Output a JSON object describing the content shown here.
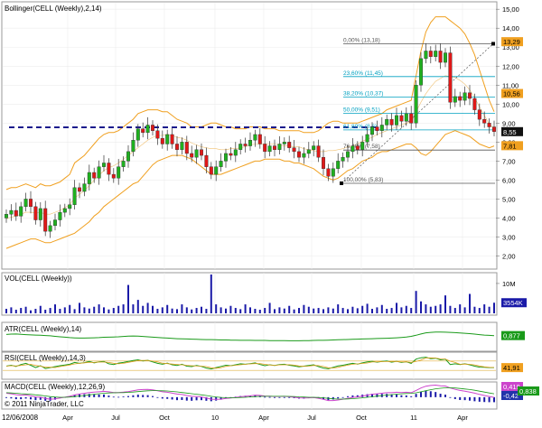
{
  "chart_data": {
    "type": "candlestick",
    "x_ticks": [
      "Apr",
      "Jul",
      "Oct",
      "10",
      "Apr",
      "Jul",
      "Oct",
      "11",
      "Apr"
    ],
    "date_label": "12/06/2008",
    "copyright": "© 2011 NinjaTrader, LLC",
    "price_panel": {
      "label": "Bollinger(CELL (Weekly),2,14)",
      "ylim": [
        1.5,
        15.2
      ],
      "y_ticks": [
        "15,00",
        "14,00",
        "13,00",
        "12,00",
        "11,00",
        "10,00",
        "9,00",
        "8,00",
        "7,00",
        "6,00",
        "5,00",
        "4,00",
        "3,00",
        "2,00"
      ],
      "tick_values": [
        15,
        14,
        13,
        12,
        11,
        10,
        9,
        8,
        7,
        6,
        5,
        4,
        3,
        2
      ],
      "last_price": "8,55",
      "badges": [
        {
          "text": "13,29",
          "value": 13.29,
          "color": "#f0a020"
        },
        {
          "text": "10,56",
          "value": 10.56,
          "color": "#f0a020"
        },
        {
          "text": "7,81",
          "value": 7.81,
          "color": "#f0a020"
        }
      ],
      "support_level": 8.78,
      "fibonacci": [
        {
          "label": "0,00% (13,18)",
          "value": 13.18,
          "color": "#555555"
        },
        {
          "label": "23,60% (11,45)",
          "value": 11.45,
          "color": "#00a0c0"
        },
        {
          "label": "38,20% (10,37)",
          "value": 10.37,
          "color": "#00a0c0"
        },
        {
          "label": "50,00% (9,51)",
          "value": 9.51,
          "color": "#00a0c0"
        },
        {
          "label": "61,80% (8,6)",
          "value": 8.64,
          "color": "#00a0c0"
        },
        {
          "label": "76,40% (7,58)",
          "value": 7.58,
          "color": "#555555"
        },
        {
          "label": "100,00% (5,83)",
          "value": 5.83,
          "color": "#555555"
        }
      ],
      "closes": [
        4.2,
        4.4,
        4.1,
        4.6,
        5.0,
        4.6,
        3.9,
        4.5,
        3.3,
        3.6,
        3.9,
        4.3,
        4.5,
        4.7,
        5.6,
        5.4,
        5.8,
        6.4,
        6.1,
        6.7,
        6.9,
        6.3,
        6.1,
        6.7,
        7.0,
        7.5,
        8.1,
        8.7,
        8.5,
        8.9,
        8.6,
        8.2,
        7.9,
        8.4,
        7.9,
        7.6,
        8.0,
        7.4,
        7.2,
        7.6,
        7.3,
        6.7,
        6.3,
        6.7,
        7.0,
        7.4,
        7.3,
        7.6,
        7.9,
        7.8,
        8.1,
        8.4,
        7.9,
        7.5,
        7.8,
        7.6,
        7.9,
        8.0,
        7.7,
        7.5,
        7.2,
        7.4,
        7.6,
        7.8,
        7.2,
        6.6,
        6.2,
        6.6,
        7.0,
        7.2,
        7.5,
        7.8,
        7.6,
        8.0,
        8.4,
        8.8,
        8.6,
        8.9,
        9.2,
        8.9,
        9.4,
        9.1,
        9.5,
        9.0,
        11.0,
        12.4,
        12.8,
        12.5,
        12.8,
        12.2,
        12.7,
        10.1,
        10.4,
        10.2,
        10.6,
        10.3,
        9.7,
        9.2,
        9.0,
        8.8,
        8.55
      ],
      "bb_upper": [
        5.5,
        5.6,
        5.6,
        5.7,
        5.8,
        5.7,
        5.6,
        5.8,
        5.7,
        5.7,
        5.8,
        5.9,
        6.1,
        6.3,
        6.9,
        7.1,
        7.3,
        7.6,
        7.9,
        8.2,
        8.4,
        8.5,
        8.5,
        8.6,
        8.8,
        9.0,
        9.2,
        9.5,
        9.6,
        9.7,
        9.7,
        9.7,
        9.6,
        9.6,
        9.4,
        9.2,
        9.1,
        9.0,
        8.8,
        8.8,
        8.8,
        8.9,
        9.0,
        9.0,
        8.9,
        8.8,
        8.8,
        8.7,
        8.7,
        8.7,
        8.8,
        8.8,
        8.8,
        8.7,
        8.7,
        8.7,
        8.6,
        8.6,
        8.6,
        8.6,
        8.6,
        8.5,
        8.5,
        8.5,
        8.6,
        8.8,
        9.0,
        9.1,
        9.1,
        9.0,
        9.0,
        9.0,
        9.0,
        9.1,
        9.2,
        9.3,
        9.4,
        9.5,
        9.7,
        9.8,
        9.9,
        10.0,
        10.1,
        10.2,
        11.5,
        12.8,
        13.8,
        14.3,
        14.6,
        14.6,
        14.6,
        14.4,
        14.2,
        14.0,
        13.7,
        13.2,
        12.6,
        11.8,
        11.0,
        10.2,
        9.6
      ],
      "bb_lower": [
        2.4,
        2.5,
        2.6,
        2.7,
        2.8,
        2.9,
        2.9,
        2.8,
        2.7,
        2.7,
        2.8,
        2.9,
        3.0,
        3.1,
        3.2,
        3.4,
        3.6,
        3.8,
        4.1,
        4.3,
        4.6,
        4.8,
        5.0,
        5.2,
        5.4,
        5.6,
        5.8,
        5.9,
        6.2,
        6.5,
        6.8,
        7.0,
        7.1,
        7.2,
        7.3,
        7.3,
        7.3,
        7.2,
        7.1,
        6.9,
        6.7,
        6.5,
        6.3,
        6.3,
        6.3,
        6.4,
        6.5,
        6.6,
        6.7,
        6.8,
        6.9,
        7.0,
        7.0,
        7.1,
        7.1,
        7.1,
        7.1,
        7.0,
        7.0,
        6.9,
        6.9,
        6.8,
        6.7,
        6.6,
        6.4,
        6.2,
        6.1,
        6.0,
        6.1,
        6.3,
        6.5,
        6.6,
        6.8,
        7.0,
        7.1,
        7.2,
        7.4,
        7.5,
        7.5,
        7.6,
        7.7,
        7.8,
        7.9,
        7.9,
        7.7,
        7.4,
        7.3,
        7.5,
        7.8,
        8.1,
        8.4,
        8.5,
        8.6,
        8.5,
        8.4,
        8.3,
        8.1,
        7.9,
        7.8,
        7.7,
        7.8
      ]
    },
    "volume_panel": {
      "label": "VOL(CELL (Weekly))",
      "ylim": [
        0,
        13
      ],
      "y_tick": "10M",
      "tick_value": 10,
      "badge": "3554K",
      "badge_value": 3.554,
      "values": [
        1.5,
        2.0,
        1.2,
        1.8,
        2.2,
        1.0,
        1.5,
        2.5,
        1.2,
        1.8,
        3.0,
        1.5,
        2.0,
        2.8,
        1.4,
        3.5,
        2.0,
        1.6,
        2.2,
        3.0,
        2.0,
        1.3,
        1.8,
        2.5,
        3.0,
        9.5,
        3.0,
        4.5,
        2.5,
        3.5,
        2.5,
        1.5,
        2.0,
        2.8,
        1.6,
        1.4,
        3.0,
        2.0,
        1.3,
        1.8,
        2.2,
        1.5,
        13.0,
        3.0,
        2.0,
        1.6,
        2.5,
        1.8,
        1.4,
        3.0,
        2.0,
        1.5,
        1.2,
        1.8,
        3.5,
        1.4,
        2.0,
        1.6,
        2.5,
        1.3,
        1.8,
        2.8,
        2.2,
        1.6,
        1.8,
        1.4,
        2.0,
        1.6,
        3.0,
        1.8,
        1.4,
        2.2,
        1.7,
        2.5,
        3.2,
        1.5,
        2.0,
        2.8,
        1.5,
        1.8,
        3.5,
        2.0,
        2.5,
        1.8,
        7.5,
        4.0,
        3.0,
        2.2,
        2.5,
        3.0,
        6.0,
        2.5,
        1.8,
        3.0,
        2.0,
        6.5,
        2.2,
        1.8,
        3.0,
        2.2,
        3.55
      ]
    },
    "atr_panel": {
      "label": "ATR(CELL (Weekly),14)",
      "badge": "0,877",
      "ylim": [
        0,
        1.6
      ],
      "values": [
        0.95,
        0.97,
        0.98,
        0.96,
        0.94,
        0.92,
        0.91,
        0.9,
        0.88,
        0.86,
        0.83,
        0.8,
        0.78,
        0.75,
        0.73,
        0.72,
        0.72,
        0.73,
        0.74,
        0.75,
        0.77,
        0.78,
        0.79,
        0.8,
        0.82,
        0.84,
        0.85,
        0.84,
        0.82,
        0.8,
        0.78,
        0.76,
        0.74,
        0.72,
        0.7,
        0.68,
        0.67,
        0.66,
        0.65,
        0.64,
        0.63,
        0.62,
        0.62,
        0.61,
        0.6,
        0.6,
        0.59,
        0.59,
        0.58,
        0.58,
        0.58,
        0.57,
        0.57,
        0.57,
        0.56,
        0.56,
        0.56,
        0.56,
        0.55,
        0.55,
        0.55,
        0.56,
        0.56,
        0.57,
        0.58,
        0.58,
        0.59,
        0.6,
        0.61,
        0.62,
        0.63,
        0.64,
        0.65,
        0.66,
        0.67,
        0.68,
        0.69,
        0.7,
        0.71,
        0.72,
        0.74,
        0.76,
        0.79,
        0.83,
        0.9,
        0.98,
        1.05,
        1.08,
        1.1,
        1.1,
        1.09,
        1.08,
        1.06,
        1.04,
        1.02,
        1.0,
        0.97,
        0.94,
        0.91,
        0.89,
        0.877
      ]
    },
    "rsi_panel": {
      "label": "RSI(CELL (Weekly),14,3)",
      "badge": "41,91",
      "ylim": [
        0,
        100
      ],
      "levels": [
        30,
        70
      ],
      "values": [
        48,
        52,
        47,
        55,
        60,
        52,
        42,
        50,
        38,
        42,
        46,
        50,
        53,
        56,
        64,
        60,
        63,
        68,
        62,
        66,
        68,
        58,
        55,
        61,
        64,
        68,
        72,
        75,
        70,
        73,
        66,
        60,
        56,
        61,
        54,
        51,
        56,
        48,
        46,
        51,
        47,
        40,
        36,
        42,
        47,
        52,
        50,
        54,
        58,
        56,
        59,
        62,
        55,
        50,
        54,
        51,
        55,
        56,
        52,
        49,
        45,
        48,
        51,
        54,
        46,
        40,
        37,
        43,
        49,
        52,
        56,
        60,
        57,
        62,
        66,
        69,
        65,
        68,
        70,
        65,
        69,
        64,
        67,
        60,
        78,
        84,
        86,
        80,
        82,
        75,
        78,
        55,
        58,
        55,
        58,
        54,
        48,
        44,
        43,
        42,
        41.91
      ]
    },
    "macd_panel": {
      "label": "MACD(CELL (Weekly),12,26,9)",
      "badges": [
        {
          "text": "0,419",
          "color": "#cc44cc"
        },
        {
          "text": "-0,42",
          "color": "#2233aa"
        },
        {
          "text": "0,838",
          "color": "#1a9a1a"
        }
      ],
      "ylim": [
        -0.9,
        1.2
      ],
      "macd": [
        0.35,
        0.3,
        0.22,
        0.18,
        0.2,
        0.12,
        0.02,
        0.0,
        -0.12,
        -0.18,
        -0.15,
        -0.08,
        0.0,
        0.08,
        0.2,
        0.28,
        0.34,
        0.42,
        0.45,
        0.48,
        0.52,
        0.48,
        0.42,
        0.42,
        0.45,
        0.5,
        0.58,
        0.66,
        0.68,
        0.7,
        0.66,
        0.58,
        0.48,
        0.44,
        0.36,
        0.28,
        0.24,
        0.15,
        0.08,
        0.06,
        0.02,
        -0.08,
        -0.18,
        -0.2,
        -0.18,
        -0.12,
        -0.08,
        -0.02,
        0.04,
        0.08,
        0.12,
        0.18,
        0.16,
        0.1,
        0.09,
        0.06,
        0.07,
        0.08,
        0.04,
        0.0,
        -0.06,
        -0.08,
        -0.06,
        -0.03,
        -0.1,
        -0.2,
        -0.3,
        -0.3,
        -0.25,
        -0.18,
        -0.1,
        -0.02,
        0.02,
        0.1,
        0.18,
        0.26,
        0.3,
        0.35,
        0.4,
        0.4,
        0.44,
        0.42,
        0.44,
        0.4,
        0.6,
        0.82,
        0.98,
        1.05,
        1.08,
        1.02,
        1.0,
        0.82,
        0.7,
        0.6,
        0.54,
        0.46,
        0.36,
        0.25,
        0.15,
        0.06,
        -0.02
      ],
      "signal": [
        0.4,
        0.38,
        0.35,
        0.31,
        0.29,
        0.26,
        0.21,
        0.17,
        0.11,
        0.05,
        0.01,
        -0.01,
        -0.01,
        0.01,
        0.05,
        0.1,
        0.15,
        0.21,
        0.26,
        0.31,
        0.35,
        0.38,
        0.39,
        0.4,
        0.41,
        0.43,
        0.46,
        0.5,
        0.54,
        0.57,
        0.59,
        0.59,
        0.57,
        0.55,
        0.51,
        0.47,
        0.42,
        0.37,
        0.31,
        0.26,
        0.21,
        0.15,
        0.08,
        0.02,
        -0.02,
        -0.04,
        -0.05,
        -0.05,
        -0.03,
        -0.01,
        0.02,
        0.05,
        0.07,
        0.08,
        0.08,
        0.08,
        0.08,
        0.08,
        0.07,
        0.06,
        0.03,
        0.01,
        -0.01,
        -0.01,
        -0.03,
        -0.06,
        -0.11,
        -0.15,
        -0.17,
        -0.17,
        -0.16,
        -0.13,
        -0.1,
        -0.06,
        -0.01,
        0.04,
        0.09,
        0.14,
        0.19,
        0.23,
        0.27,
        0.3,
        0.33,
        0.34,
        0.39,
        0.48,
        0.58,
        0.67,
        0.75,
        0.8,
        0.84,
        0.84,
        0.82,
        0.78,
        0.73,
        0.68,
        0.62,
        0.54,
        0.46,
        0.38,
        0.3
      ]
    }
  }
}
